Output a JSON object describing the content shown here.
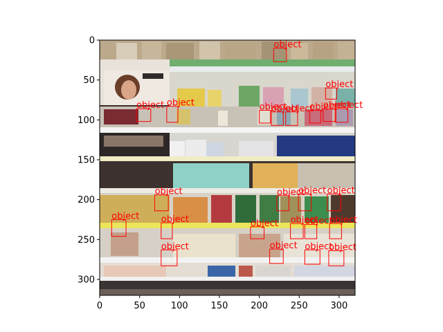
{
  "figure": {
    "image_description_icon": "store-shelf-photo",
    "axes": {
      "x_ticks": [
        0,
        50,
        100,
        150,
        200,
        250,
        300
      ],
      "y_ticks": [
        0,
        50,
        100,
        150,
        200,
        250,
        300
      ],
      "x_range": [
        0,
        320
      ],
      "y_range": [
        320,
        0
      ],
      "grid": false
    },
    "box_color": "#ff0000",
    "detections": [
      {
        "label": "object",
        "x1": 218,
        "y1": 10,
        "x2": 234,
        "y2": 27
      },
      {
        "label": "object",
        "x1": 283,
        "y1": 60,
        "x2": 297,
        "y2": 74
      },
      {
        "label": "object",
        "x1": 46,
        "y1": 86,
        "x2": 64,
        "y2": 102
      },
      {
        "label": "object",
        "x1": 84,
        "y1": 83,
        "x2": 98,
        "y2": 103
      },
      {
        "label": "object",
        "x1": 200,
        "y1": 88,
        "x2": 214,
        "y2": 104
      },
      {
        "label": "object",
        "x1": 215,
        "y1": 90,
        "x2": 230,
        "y2": 107
      },
      {
        "label": "object",
        "x1": 233,
        "y1": 90,
        "x2": 248,
        "y2": 107
      },
      {
        "label": "object",
        "x1": 263,
        "y1": 88,
        "x2": 277,
        "y2": 104
      },
      {
        "label": "object",
        "x1": 280,
        "y1": 86,
        "x2": 296,
        "y2": 102
      },
      {
        "label": "object",
        "x1": 295,
        "y1": 86,
        "x2": 311,
        "y2": 103
      },
      {
        "label": "object",
        "x1": 69,
        "y1": 194,
        "x2": 86,
        "y2": 214
      },
      {
        "label": "object",
        "x1": 222,
        "y1": 195,
        "x2": 237,
        "y2": 214
      },
      {
        "label": "object",
        "x1": 249,
        "y1": 193,
        "x2": 265,
        "y2": 214
      },
      {
        "label": "object",
        "x1": 285,
        "y1": 193,
        "x2": 302,
        "y2": 214
      },
      {
        "label": "object",
        "x1": 15,
        "y1": 225,
        "x2": 33,
        "y2": 246
      },
      {
        "label": "object",
        "x1": 77,
        "y1": 229,
        "x2": 91,
        "y2": 249
      },
      {
        "label": "object",
        "x1": 189,
        "y1": 234,
        "x2": 206,
        "y2": 249
      },
      {
        "label": "object",
        "x1": 239,
        "y1": 230,
        "x2": 255,
        "y2": 249
      },
      {
        "label": "object",
        "x1": 257,
        "y1": 231,
        "x2": 272,
        "y2": 249
      },
      {
        "label": "object",
        "x1": 288,
        "y1": 230,
        "x2": 303,
        "y2": 249
      },
      {
        "label": "object",
        "x1": 77,
        "y1": 263,
        "x2": 97,
        "y2": 283
      },
      {
        "label": "object",
        "x1": 213,
        "y1": 262,
        "x2": 230,
        "y2": 280
      },
      {
        "label": "object",
        "x1": 257,
        "y1": 263,
        "x2": 276,
        "y2": 281
      },
      {
        "label": "object",
        "x1": 287,
        "y1": 264,
        "x2": 306,
        "y2": 283
      }
    ]
  }
}
